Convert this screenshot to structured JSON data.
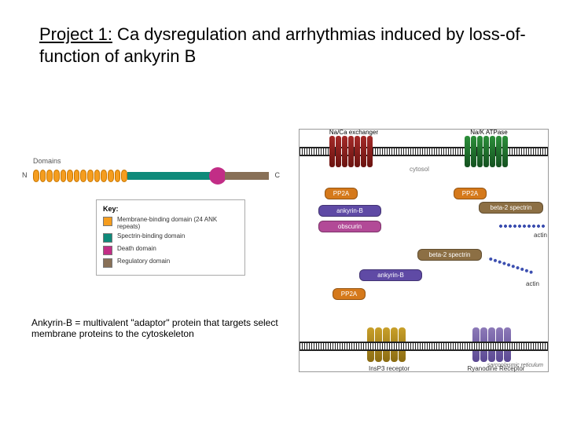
{
  "title": {
    "prefix": "Project 1:",
    "rest": " Ca dysregulation and arrhythmias induced by loss-of-function of ankyrin B"
  },
  "domain_diagram": {
    "header": "Domains",
    "terminus_left": "N",
    "terminus_right": "C",
    "repeat_count": 14,
    "colors": {
      "membrane": "#f59d1f",
      "spectrin": "#0f8a7a",
      "death": "#c22d86",
      "regulatory": "#887057"
    },
    "key_title": "Key:",
    "key": [
      {
        "color": "#f59d1f",
        "label": "Membrane-binding domain (24 ANK repeats)"
      },
      {
        "color": "#0f8a7a",
        "label": "Spectrin-binding domain"
      },
      {
        "color": "#c22d86",
        "label": "Death domain"
      },
      {
        "color": "#887057",
        "label": "Regulatory domain"
      }
    ]
  },
  "caption": "Ankyrin-B = multivalent \"adaptor\" protein that targets select membrane proteins to the cytoskeleton",
  "cell_diagram": {
    "top_proteins": {
      "ncx": "Na/Ca exchanger",
      "nak": "Na/K ATPase"
    },
    "barrel_cols": 7,
    "cytosol_label": "cytosol",
    "pp2a": "PP2A",
    "ankyrinB": "ankyrin-B",
    "obscurin": "obscurin",
    "beta2spectrin": "beta-2 spectrin",
    "actin": "actin",
    "receptors": {
      "ip3": "InsP3 receptor",
      "ryr": "Ryanodine Receptor"
    },
    "receptor_cols": 5,
    "sr_label": "sarcoplasmic reticulum",
    "colors": {
      "ncx": "#8a1f1d",
      "nak": "#1f7a2c",
      "pp2a": "#d5791b",
      "ankb": "#5f4aa5",
      "obsc": "#b24a97",
      "b2s": "#8c6f44",
      "actin": "#3c4fb0",
      "ip3": "#b78a1c",
      "ryr": "#6f5ca3",
      "membrane_line": "#222222"
    }
  }
}
